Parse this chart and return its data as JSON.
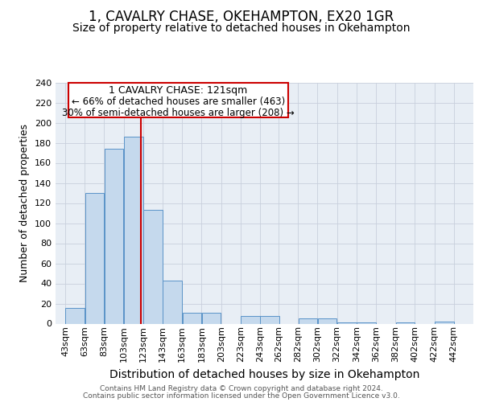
{
  "title": "1, CAVALRY CHASE, OKEHAMPTON, EX20 1GR",
  "subtitle": "Size of property relative to detached houses in Okehampton",
  "xlabel": "Distribution of detached houses by size in Okehampton",
  "ylabel": "Number of detached properties",
  "footer_line1": "Contains HM Land Registry data © Crown copyright and database right 2024.",
  "footer_line2": "Contains public sector information licensed under the Open Government Licence v3.0.",
  "bar_left_edges": [
    43,
    63,
    83,
    103,
    123,
    143,
    163,
    183,
    203,
    223,
    243,
    262,
    282,
    302,
    322,
    342,
    362,
    382,
    402,
    422
  ],
  "bar_heights": [
    16,
    130,
    174,
    186,
    113,
    43,
    11,
    11,
    0,
    8,
    8,
    0,
    5,
    5,
    1,
    1,
    0,
    1,
    0,
    2
  ],
  "bar_widths": [
    20,
    20,
    20,
    20,
    20,
    20,
    20,
    20,
    20,
    20,
    20,
    19,
    20,
    20,
    20,
    20,
    20,
    20,
    20,
    20
  ],
  "xtick_labels": [
    "43sqm",
    "63sqm",
    "83sqm",
    "103sqm",
    "123sqm",
    "143sqm",
    "163sqm",
    "183sqm",
    "203sqm",
    "223sqm",
    "243sqm",
    "262sqm",
    "282sqm",
    "302sqm",
    "322sqm",
    "342sqm",
    "362sqm",
    "382sqm",
    "402sqm",
    "422sqm",
    "442sqm"
  ],
  "xtick_positions": [
    43,
    63,
    83,
    103,
    123,
    143,
    163,
    183,
    203,
    223,
    243,
    262,
    282,
    302,
    322,
    342,
    362,
    382,
    402,
    422,
    442
  ],
  "ylim": [
    0,
    240
  ],
  "yticks": [
    0,
    20,
    40,
    60,
    80,
    100,
    120,
    140,
    160,
    180,
    200,
    220,
    240
  ],
  "bar_color": "#c5d9ed",
  "bar_edge_color": "#5a93c8",
  "grid_color": "#c8d0dc",
  "bg_color": "#e8eef5",
  "vertical_line_x": 121,
  "vertical_line_color": "#cc0000",
  "annotation_box_title": "1 CAVALRY CHASE: 121sqm",
  "annotation_line1": "← 66% of detached houses are smaller (463)",
  "annotation_line2": "30% of semi-detached houses are larger (208) →",
  "annotation_box_color": "#cc0000",
  "title_fontsize": 12,
  "subtitle_fontsize": 10,
  "xlabel_fontsize": 10,
  "ylabel_fontsize": 9,
  "tick_fontsize": 8,
  "annotation_title_fontsize": 9,
  "annotation_body_fontsize": 8.5
}
